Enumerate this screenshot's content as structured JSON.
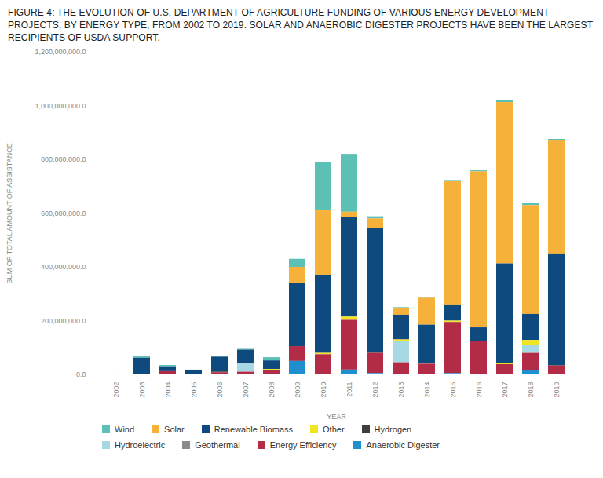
{
  "chart_data": {
    "type": "bar",
    "stacked": true,
    "title": "FIGURE 4: THE EVOLUTION OF U.S. DEPARTMENT OF AGRICULTURE FUNDING OF VARIOUS ENERGY DEVELOPMENT PROJECTS, BY ENERGY TYPE, FROM 2002 TO 2019. SOLAR AND ANAEROBIC DIGESTER PROJECTS HAVE BEEN THE LARGEST RECIPIENTS OF USDA SUPPORT.",
    "x_label": "YEAR",
    "y_label": "SUM OF TOTAL AMOUNT OF ASSISTANCE",
    "categories": [
      "2002",
      "2003",
      "2004",
      "2005",
      "2006",
      "2007",
      "2008",
      "2009",
      "2010",
      "2011",
      "2012",
      "2013",
      "2014",
      "2015",
      "2016",
      "2017",
      "2018",
      "2019"
    ],
    "series": [
      {
        "name": "Wind",
        "color": "#5cc0b5",
        "values": [
          3000000,
          5000000,
          5000000,
          3000000,
          4000000,
          3000000,
          12000000,
          30000000,
          180000000,
          215000000,
          8000000,
          3000000,
          3000000,
          3000000,
          4000000,
          7000000,
          8000000,
          6000000
        ]
      },
      {
        "name": "Solar",
        "color": "#f6b13b",
        "values": [
          0,
          0,
          0,
          0,
          0,
          0,
          0,
          60000000,
          240000000,
          20000000,
          35000000,
          25000000,
          100000000,
          460000000,
          580000000,
          600000000,
          405000000,
          420000000
        ]
      },
      {
        "name": "Renewable Biomass",
        "color": "#0f4a7f",
        "values": [
          0,
          60000000,
          18000000,
          14000000,
          55000000,
          52000000,
          32000000,
          235000000,
          290000000,
          370000000,
          462000000,
          92000000,
          142000000,
          60000000,
          50000000,
          370000000,
          97000000,
          415000000
        ]
      },
      {
        "name": "Other",
        "color": "#f1e421",
        "values": [
          0,
          0,
          0,
          0,
          0,
          0,
          5000000,
          0,
          5000000,
          12000000,
          0,
          5000000,
          0,
          5000000,
          0,
          5000000,
          18000000,
          0
        ]
      },
      {
        "name": "Hydrogen",
        "color": "#3f3f3f",
        "values": [
          0,
          0,
          0,
          0,
          3000000,
          0,
          0,
          0,
          0,
          0,
          3000000,
          0,
          0,
          0,
          0,
          0,
          0,
          2000000
        ]
      },
      {
        "name": "Hydroelectric",
        "color": "#a7d9e4",
        "values": [
          0,
          0,
          0,
          0,
          0,
          30000000,
          0,
          0,
          0,
          0,
          0,
          80000000,
          3000000,
          0,
          0,
          0,
          30000000,
          0
        ]
      },
      {
        "name": "Geothermal",
        "color": "#8a8a8a",
        "values": [
          0,
          0,
          0,
          0,
          0,
          0,
          0,
          0,
          0,
          0,
          0,
          0,
          0,
          0,
          0,
          0,
          0,
          0
        ]
      },
      {
        "name": "Energy Efficiency",
        "color": "#b22c48",
        "values": [
          0,
          2000000,
          12000000,
          1000000,
          8000000,
          10000000,
          15000000,
          55000000,
          75000000,
          185000000,
          75000000,
          45000000,
          40000000,
          190000000,
          125000000,
          38000000,
          65000000,
          33000000
        ]
      },
      {
        "name": "Anaerobic Digester",
        "color": "#1f8fd0",
        "values": [
          0,
          0,
          0,
          0,
          0,
          0,
          0,
          50000000,
          0,
          18000000,
          5000000,
          0,
          0,
          5000000,
          0,
          0,
          15000000,
          0
        ]
      }
    ],
    "ylim": [
      0,
      1200000000
    ],
    "yticks": [
      {
        "value": 0,
        "label": "0.0"
      },
      {
        "value": 200000000,
        "label": "200,000,000.0"
      },
      {
        "value": 400000000,
        "label": "400,000,000.0"
      },
      {
        "value": 600000000,
        "label": "600,000,000.0"
      },
      {
        "value": 800000000,
        "label": "800,000,000.0"
      },
      {
        "value": 1000000000,
        "label": "1,000,000,000.0"
      },
      {
        "value": 1200000000,
        "label": "1,200,000,000.0"
      }
    ],
    "grid": false,
    "legend": "bottom"
  }
}
